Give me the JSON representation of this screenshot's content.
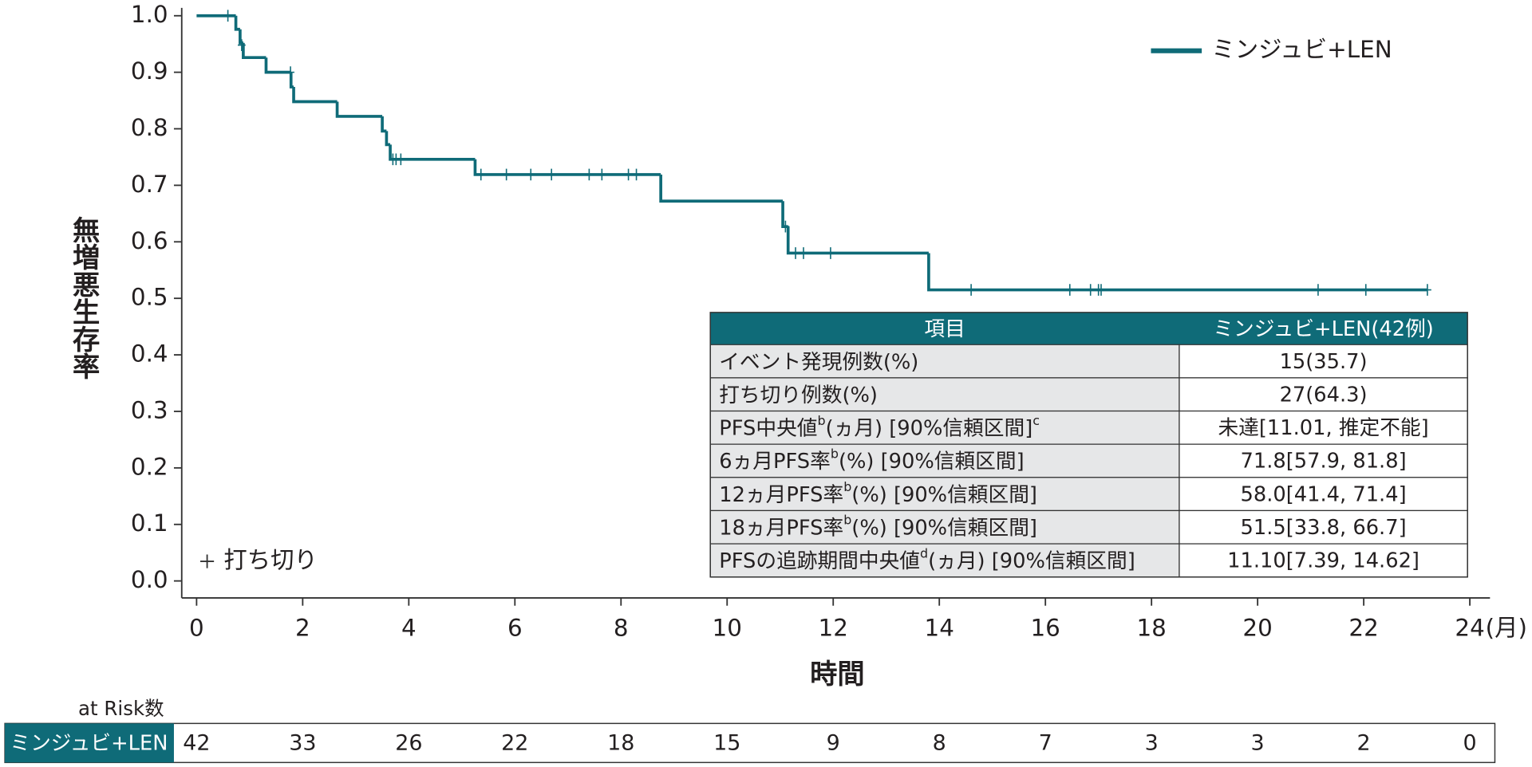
{
  "chart_data": {
    "type": "step",
    "ylabel": "無増悪生存率",
    "xlabel": "時間",
    "x_unit": "(月)",
    "xlim": [
      -0.28,
      24.38
    ],
    "ylim": [
      -0.03,
      1.014
    ],
    "xticks": [
      0,
      2,
      4,
      6,
      8,
      10,
      12,
      14,
      16,
      18,
      20,
      22,
      24
    ],
    "yticks": [
      {
        "value": 0,
        "label": "0.0"
      },
      0.1,
      0.2,
      0.3,
      0.4,
      0.5,
      0.6,
      0.7,
      0.8,
      0.9,
      {
        "value": 1,
        "label": "1.0"
      }
    ],
    "series": [
      {
        "name": "ミンジュビ+LEN",
        "color": "#0f6b78",
        "x": [
          0,
          0.74,
          0.82,
          0.88,
          1.31,
          1.78,
          1.83,
          2.65,
          3.5,
          3.58,
          3.65,
          5.25,
          8.75,
          11.05,
          11.15,
          13.8,
          23.2
        ],
        "values": [
          1.0,
          0.976,
          0.952,
          0.926,
          0.9,
          0.874,
          0.848,
          0.822,
          0.796,
          0.772,
          0.746,
          0.719,
          0.672,
          0.627,
          0.58,
          0.515,
          0.515
        ]
      }
    ],
    "censored": {
      "name": "打ち切り",
      "color": "#0f6b78",
      "x": [
        0.59,
        0.85,
        1.77,
        3.7,
        3.76,
        3.85,
        5.36,
        5.84,
        6.3,
        6.69,
        7.4,
        7.64,
        8.14,
        8.29,
        11.1,
        11.29,
        11.44,
        11.95,
        14.6,
        16.46,
        16.85,
        17.0,
        17.05,
        21.14,
        22.04,
        23.2
      ],
      "values": [
        1.0,
        0.948,
        0.9,
        0.746,
        0.746,
        0.746,
        0.719,
        0.719,
        0.719,
        0.719,
        0.719,
        0.719,
        0.719,
        0.719,
        0.627,
        0.58,
        0.58,
        0.58,
        0.515,
        0.515,
        0.515,
        0.515,
        0.515,
        0.515,
        0.515,
        0.515
      ]
    }
  },
  "table": {
    "header": [
      "項目",
      "ミンジュビ+LEN(42例)"
    ],
    "rows": [
      {
        "label": [
          {
            "text": "イベント発現例数(%)"
          }
        ],
        "value": "15(35.7)"
      },
      {
        "label": [
          {
            "text": "打ち切り例数(%)"
          }
        ],
        "value": "27(64.3)"
      },
      {
        "label": [
          {
            "text": "PFS中央値"
          },
          {
            "text": "b",
            "sup": true
          },
          {
            "text": "(ヵ月) [90%信頼区間]"
          },
          {
            "text": "c",
            "sup": true
          }
        ],
        "value": "未達[11.01, 推定不能]"
      },
      {
        "label": [
          {
            "text": "6ヵ月PFS率"
          },
          {
            "text": "b",
            "sup": true
          },
          {
            "text": "(%) [90%信頼区間]"
          }
        ],
        "value": "71.8[57.9, 81.8]"
      },
      {
        "label": [
          {
            "text": "12ヵ月PFS率"
          },
          {
            "text": "b",
            "sup": true
          },
          {
            "text": "(%) [90%信頼区間]"
          }
        ],
        "value": "58.0[41.4, 71.4]"
      },
      {
        "label": [
          {
            "text": "18ヵ月PFS率"
          },
          {
            "text": "b",
            "sup": true
          },
          {
            "text": "(%) [90%信頼区間]"
          }
        ],
        "value": "51.5[33.8, 66.7]"
      },
      {
        "label": [
          {
            "text": "PFSの追跡期間中央値"
          },
          {
            "text": "d",
            "sup": true
          },
          {
            "text": "(ヵ月) [90%信頼区間]"
          }
        ],
        "value": "11.10[7.39, 14.62]"
      }
    ]
  },
  "at_risk": {
    "title": "at Risk数",
    "name": "ミンジュビ+LEN",
    "counts": [
      42,
      33,
      26,
      22,
      18,
      15,
      9,
      8,
      7,
      3,
      3,
      2,
      0
    ]
  }
}
